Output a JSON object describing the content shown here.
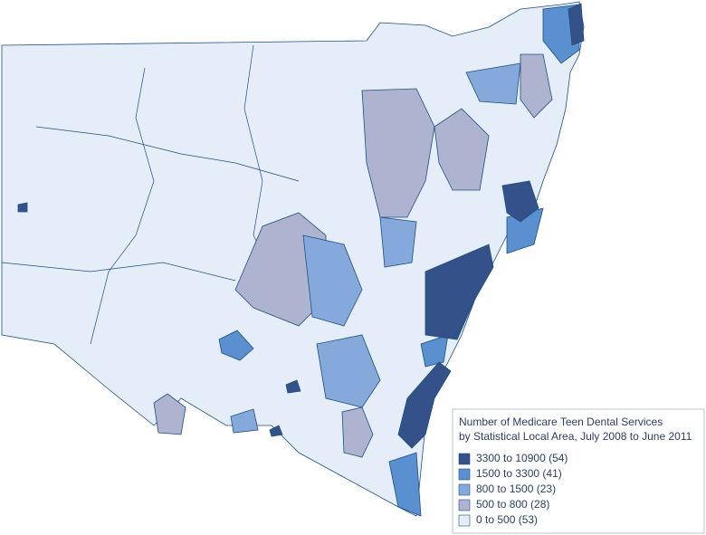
{
  "legend": {
    "title_lines": [
      "Number of Medicare Teen Dental Services",
      "by Statistical Local Area, July 2008 to June 2011"
    ],
    "items": [
      {
        "label": "3300 to 10900 (54)",
        "color": "#34518a"
      },
      {
        "label": "1500 to 3300 (41)",
        "color": "#5a8fd0"
      },
      {
        "label": "800 to 1500 (23)",
        "color": "#86a9dc"
      },
      {
        "label": "500 to 800 (28)",
        "color": "#aeb3cf"
      },
      {
        "label": "0 to 500 (53)",
        "color": "#e4edf8"
      }
    ]
  }
}
